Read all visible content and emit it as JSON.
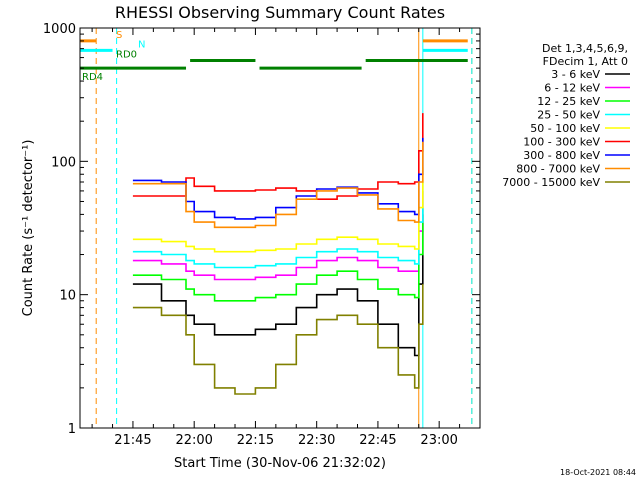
{
  "chart_data": {
    "type": "line",
    "title": "RHESSI Observing Summary Count Rates",
    "xlabel": "Start Time (30-Nov-06 21:32:02)",
    "ylabel": "Count Rate (s⁻¹ detector⁻¹)",
    "y_scale": "log",
    "ylim": [
      1,
      1000
    ],
    "xlim": [
      "21:32:02",
      "23:10:00"
    ],
    "x_ticks": [
      "21:45",
      "22:00",
      "22:15",
      "22:30",
      "22:45",
      "23:00"
    ],
    "y_ticks": [
      "1",
      "10",
      "100",
      "1000"
    ],
    "legend_header": [
      "Det 1,3,4,5,6,9,",
      "FDecim 1, Att 0"
    ],
    "legend_position": "right",
    "series": [
      {
        "name": "3 - 6 keV",
        "color": "#000000",
        "points": [
          [
            "21:45",
            12
          ],
          [
            "21:52",
            9
          ],
          [
            "21:58",
            7
          ],
          [
            "22:00",
            6
          ],
          [
            "22:05",
            5
          ],
          [
            "22:10",
            5
          ],
          [
            "22:15",
            5.5
          ],
          [
            "22:20",
            6
          ],
          [
            "22:25",
            8
          ],
          [
            "22:30",
            10
          ],
          [
            "22:35",
            11
          ],
          [
            "22:40",
            9
          ],
          [
            "22:45",
            6
          ],
          [
            "22:50",
            4
          ],
          [
            "22:54",
            3.5
          ],
          [
            "22:55",
            12
          ],
          [
            "22:56",
            40
          ]
        ]
      },
      {
        "name": "6 - 12 keV",
        "color": "#ff00ff",
        "points": [
          [
            "21:45",
            18
          ],
          [
            "21:52",
            17
          ],
          [
            "21:58",
            15
          ],
          [
            "22:00",
            14
          ],
          [
            "22:05",
            13
          ],
          [
            "22:10",
            13
          ],
          [
            "22:15",
            13.5
          ],
          [
            "22:20",
            14
          ],
          [
            "22:25",
            16
          ],
          [
            "22:30",
            18
          ],
          [
            "22:35",
            19
          ],
          [
            "22:40",
            18
          ],
          [
            "22:45",
            16
          ],
          [
            "22:50",
            15
          ],
          [
            "22:54",
            15
          ],
          [
            "22:55",
            30
          ],
          [
            "22:56",
            60
          ]
        ]
      },
      {
        "name": "12 - 25 keV",
        "color": "#00ff00",
        "points": [
          [
            "21:45",
            14
          ],
          [
            "21:52",
            13
          ],
          [
            "21:58",
            11
          ],
          [
            "22:00",
            10
          ],
          [
            "22:05",
            9
          ],
          [
            "22:10",
            9
          ],
          [
            "22:15",
            9.5
          ],
          [
            "22:20",
            10
          ],
          [
            "22:25",
            12
          ],
          [
            "22:30",
            14
          ],
          [
            "22:35",
            15
          ],
          [
            "22:40",
            13
          ],
          [
            "22:45",
            11
          ],
          [
            "22:50",
            10
          ],
          [
            "22:54",
            9.5
          ],
          [
            "22:55",
            20
          ],
          [
            "22:56",
            45
          ]
        ]
      },
      {
        "name": "25 - 50 keV",
        "color": "#00ffff",
        "points": [
          [
            "21:45",
            21
          ],
          [
            "21:52",
            20
          ],
          [
            "21:58",
            18
          ],
          [
            "22:00",
            17
          ],
          [
            "22:05",
            16
          ],
          [
            "22:10",
            16
          ],
          [
            "22:15",
            16.5
          ],
          [
            "22:20",
            17
          ],
          [
            "22:25",
            19
          ],
          [
            "22:30",
            21
          ],
          [
            "22:35",
            22
          ],
          [
            "22:40",
            21
          ],
          [
            "22:45",
            19
          ],
          [
            "22:50",
            18
          ],
          [
            "22:54",
            17
          ],
          [
            "22:55",
            35
          ],
          [
            "22:56",
            70
          ]
        ]
      },
      {
        "name": "50 - 100 keV",
        "color": "#ffff00",
        "points": [
          [
            "21:45",
            26
          ],
          [
            "21:52",
            25
          ],
          [
            "21:58",
            23
          ],
          [
            "22:00",
            22
          ],
          [
            "22:05",
            21
          ],
          [
            "22:10",
            21
          ],
          [
            "22:15",
            21.5
          ],
          [
            "22:20",
            22
          ],
          [
            "22:25",
            24
          ],
          [
            "22:30",
            26
          ],
          [
            "22:35",
            27
          ],
          [
            "22:40",
            26
          ],
          [
            "22:45",
            24
          ],
          [
            "22:50",
            23
          ],
          [
            "22:54",
            22
          ],
          [
            "22:55",
            45
          ],
          [
            "22:56",
            90
          ]
        ]
      },
      {
        "name": "100 - 300 keV",
        "color": "#ff0000",
        "points": [
          [
            "21:45",
            55
          ],
          [
            "21:52",
            55
          ],
          [
            "21:58",
            75
          ],
          [
            "22:00",
            65
          ],
          [
            "22:05",
            60
          ],
          [
            "22:10",
            60
          ],
          [
            "22:15",
            61
          ],
          [
            "22:20",
            63
          ],
          [
            "22:25",
            60
          ],
          [
            "22:30",
            52
          ],
          [
            "22:35",
            55
          ],
          [
            "22:40",
            62
          ],
          [
            "22:45",
            70
          ],
          [
            "22:50",
            68
          ],
          [
            "22:54",
            70
          ],
          [
            "22:55",
            120
          ],
          [
            "22:56",
            230
          ]
        ]
      },
      {
        "name": "300 - 800 keV",
        "color": "#0000ff",
        "points": [
          [
            "21:45",
            72
          ],
          [
            "21:52",
            70
          ],
          [
            "21:58",
            50
          ],
          [
            "22:00",
            42
          ],
          [
            "22:05",
            38
          ],
          [
            "22:10",
            37
          ],
          [
            "22:15",
            38
          ],
          [
            "22:20",
            45
          ],
          [
            "22:25",
            55
          ],
          [
            "22:30",
            62
          ],
          [
            "22:35",
            64
          ],
          [
            "22:40",
            58
          ],
          [
            "22:45",
            48
          ],
          [
            "22:50",
            42
          ],
          [
            "22:54",
            40
          ],
          [
            "22:55",
            80
          ],
          [
            "22:56",
            150
          ]
        ]
      },
      {
        "name": "800 - 7000 keV",
        "color": "#ff8c00",
        "points": [
          [
            "21:45",
            68
          ],
          [
            "21:52",
            68
          ],
          [
            "21:58",
            42
          ],
          [
            "22:00",
            35
          ],
          [
            "22:05",
            32
          ],
          [
            "22:10",
            32
          ],
          [
            "22:15",
            33
          ],
          [
            "22:20",
            40
          ],
          [
            "22:25",
            52
          ],
          [
            "22:30",
            60
          ],
          [
            "22:35",
            63
          ],
          [
            "22:40",
            56
          ],
          [
            "22:45",
            44
          ],
          [
            "22:50",
            36
          ],
          [
            "22:54",
            35
          ],
          [
            "22:55",
            70
          ],
          [
            "22:56",
            140
          ]
        ]
      },
      {
        "name": "7000 - 15000 keV",
        "color": "#808000",
        "points": [
          [
            "21:45",
            8
          ],
          [
            "21:52",
            7
          ],
          [
            "21:58",
            5
          ],
          [
            "22:00",
            3
          ],
          [
            "22:05",
            2
          ],
          [
            "22:10",
            1.8
          ],
          [
            "22:15",
            2
          ],
          [
            "22:20",
            3
          ],
          [
            "22:25",
            5
          ],
          [
            "22:30",
            6.5
          ],
          [
            "22:35",
            7
          ],
          [
            "22:40",
            6
          ],
          [
            "22:45",
            4
          ],
          [
            "22:50",
            2.5
          ],
          [
            "22:54",
            2
          ],
          [
            "22:55",
            6
          ],
          [
            "22:56",
            12
          ]
        ]
      }
    ],
    "flag_bars": [
      {
        "label": "S",
        "color": "#ff8c00",
        "level": 800,
        "segments": [
          [
            "21:32",
            "21:36"
          ],
          [
            "22:56",
            "23:07"
          ]
        ]
      },
      {
        "label": "N",
        "color": "#00ffff",
        "level": 680,
        "segments": [
          [
            "21:32",
            "21:40"
          ],
          [
            "22:56",
            "23:07"
          ]
        ]
      },
      {
        "label": "RD0",
        "color": "#008000",
        "level": 570,
        "segments": [
          [
            "21:59",
            "22:15"
          ],
          [
            "22:42",
            "23:07"
          ]
        ]
      },
      {
        "label": "RD4",
        "color": "#008000",
        "level": 500,
        "segments": [
          [
            "21:32",
            "21:58"
          ],
          [
            "22:16",
            "22:41"
          ]
        ]
      }
    ],
    "vertical_markers": [
      {
        "time": "21:32:02",
        "color": "#00ffff",
        "style": "solid"
      },
      {
        "time": "21:36",
        "color": "#ff8c00",
        "style": "dashed"
      },
      {
        "time": "21:41",
        "color": "#00ffff",
        "style": "dashed"
      },
      {
        "time": "22:55",
        "color": "#ff8c00",
        "style": "solid"
      },
      {
        "time": "22:56",
        "color": "#00ffff",
        "style": "solid"
      },
      {
        "time": "23:08",
        "color": "#ff8c00",
        "style": "dashed"
      },
      {
        "time": "23:08",
        "color": "#00ffff",
        "style": "dashed"
      }
    ]
  },
  "footer": {
    "timestamp": "18-Oct-2021 08:44"
  },
  "colors": {
    "background": "#ffffff",
    "axis": "#000000"
  }
}
